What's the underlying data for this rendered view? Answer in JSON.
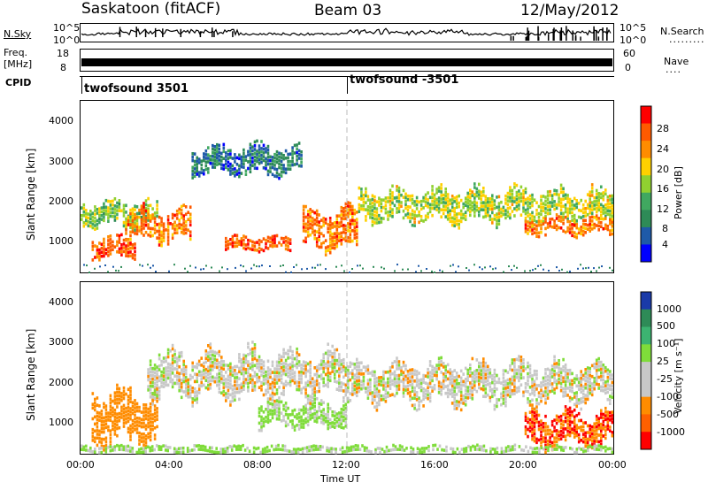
{
  "header": {
    "station": "Saskatoon (fitACF)",
    "beam": "Beam 03",
    "date": "12/May/2012"
  },
  "nsky_panel": {
    "left_label": "N.Sky",
    "ticks_left": [
      "10^5",
      "10^0"
    ],
    "ticks_right": [
      "10^5",
      "10^0"
    ],
    "right_label": "N.Search"
  },
  "freq_panel": {
    "label_line1": "Freq.",
    "label_line2": "[MHz]",
    "ticks_left": [
      "18",
      "8"
    ],
    "ticks_right": [
      "60",
      "0"
    ],
    "right_label": "Nave"
  },
  "cpid": {
    "label": "CPID",
    "segments": [
      {
        "name": "twofsound 3501",
        "start_hour": 0
      },
      {
        "name": "twofsound -3501",
        "start_hour": 12
      }
    ]
  },
  "power_panel": {
    "ylabel": "Slant Range [km]",
    "yticks": [
      "4000",
      "3000",
      "2000",
      "1000"
    ],
    "colorbar_label": "Power [dB]",
    "colorbar_ticks": [
      "28",
      "24",
      "20",
      "16",
      "12",
      "8",
      "4"
    ],
    "colors": [
      "#ff0000",
      "#ff5a00",
      "#ff8c00",
      "#ffd000",
      "#90d030",
      "#40a860",
      "#2e8b57",
      "#1e5aa8",
      "#0000ff"
    ]
  },
  "velocity_panel": {
    "ylabel": "Slant Range [km]",
    "yticks": [
      "4000",
      "3000",
      "2000",
      "1000"
    ],
    "colorbar_label": "Velocity [m s⁻¹]",
    "colorbar_ticks": [
      "1000",
      "500",
      "100",
      "25",
      "-25",
      "-100",
      "-500",
      "-1000"
    ],
    "colors": [
      "#1a3aa8",
      "#2e8b57",
      "#3cb371",
      "#7fdc3a",
      "#c8c8c8",
      "#c8c8c8",
      "#ff8c00",
      "#ff6000",
      "#ff0000"
    ]
  },
  "x_axis": {
    "ticks": [
      "00:00",
      "04:00",
      "08:00",
      "12:00",
      "16:00",
      "20:00",
      "00:00"
    ],
    "label": "Time UT"
  },
  "chart_data": {
    "type": "heatmap",
    "title": "Saskatoon (fitACF) Beam 03 12/May/2012",
    "xlabel": "Time UT",
    "ylabel": "Slant Range [km]",
    "xlim_hours": [
      0,
      24
    ],
    "ylim_km": [
      180,
      4500
    ],
    "panels": [
      {
        "name": "Power [dB]",
        "scale": [
          0,
          30
        ],
        "features": [
          {
            "t": [
              0,
              3.5
            ],
            "range_km": [
              1300,
              2000
            ],
            "value": 14
          },
          {
            "t": [
              0.5,
              2.5
            ],
            "range_km": [
              500,
              1100
            ],
            "value": 26
          },
          {
            "t": [
              2,
              5
            ],
            "range_km": [
              900,
              1800
            ],
            "value": 24
          },
          {
            "t": [
              6.5,
              9.5
            ],
            "range_km": [
              700,
              1100
            ],
            "value": 26
          },
          {
            "t": [
              10,
              12.5
            ],
            "range_km": [
              700,
              1800
            ],
            "value": 24
          },
          {
            "t": [
              12.5,
              24
            ],
            "range_km": [
              1400,
              2300
            ],
            "value": 16
          },
          {
            "t": [
              20,
              24
            ],
            "range_km": [
              1100,
              1600
            ],
            "value": 24
          },
          {
            "t": [
              5,
              10
            ],
            "range_km": [
              2600,
              3400
            ],
            "value": 6
          }
        ]
      },
      {
        "name": "Velocity [m s⁻¹]",
        "scale": [
          -1000,
          1000
        ],
        "features": [
          {
            "t": [
              0.5,
              3.5
            ],
            "range_km": [
              400,
              1800
            ],
            "value": -200
          },
          {
            "t": [
              3,
              12
            ],
            "range_km": [
              1500,
              2800
            ],
            "value": 0
          },
          {
            "t": [
              8,
              12
            ],
            "range_km": [
              800,
              1500
            ],
            "value": 100
          },
          {
            "t": [
              12,
              24
            ],
            "range_km": [
              1400,
              2500
            ],
            "value": 0
          },
          {
            "t": [
              20,
              24
            ],
            "range_km": [
              300,
              1300
            ],
            "value": -300
          },
          {
            "t": [
              0,
              24
            ],
            "range_km": [
              180,
              400
            ],
            "value": 100
          }
        ]
      }
    ],
    "nsky_series": "log scale 10^0 to 10^5, near 10^0 most of day with spikes",
    "freq_mhz": [
      8,
      18
    ],
    "nave_range": [
      0,
      60
    ],
    "cpid_change_hour": 12
  }
}
